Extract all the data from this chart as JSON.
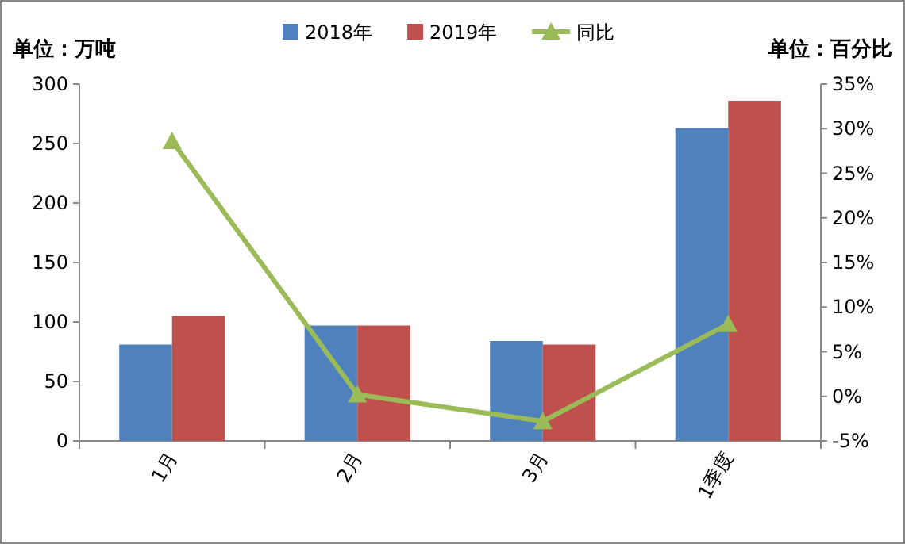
{
  "chart_data": {
    "type": "bar",
    "ylabel": "单位：万吨",
    "y2label": "单位：百分比",
    "categories": [
      "1月",
      "2月",
      "3月",
      "1季度"
    ],
    "series": [
      {
        "name": "2018年",
        "color": "#4f81bd",
        "values": [
          81,
          97,
          84,
          263
        ]
      },
      {
        "name": "2019年",
        "color": "#c0504d",
        "values": [
          105,
          97,
          81,
          286
        ]
      },
      {
        "name": "同比",
        "type": "line",
        "axis": "y2",
        "color": "#9bbb59",
        "marker": "triangle",
        "values": [
          28.6,
          0.2,
          -2.8,
          8.1
        ]
      }
    ],
    "ylim": [
      0,
      300
    ],
    "yticks": [
      0,
      50,
      100,
      150,
      200,
      250,
      300
    ],
    "y2lim": [
      -5,
      35
    ],
    "y2ticks": [
      {
        "value": -5,
        "label": "-5%"
      },
      {
        "value": 0,
        "label": "0%"
      },
      {
        "value": 5,
        "label": "5%"
      },
      {
        "value": 10,
        "label": "10%"
      },
      {
        "value": 15,
        "label": "15%"
      },
      {
        "value": 20,
        "label": "20%"
      },
      {
        "value": 25,
        "label": "25%"
      },
      {
        "value": 30,
        "label": "30%"
      },
      {
        "value": 35,
        "label": "35%"
      }
    ],
    "legend": "top",
    "grid": false
  }
}
